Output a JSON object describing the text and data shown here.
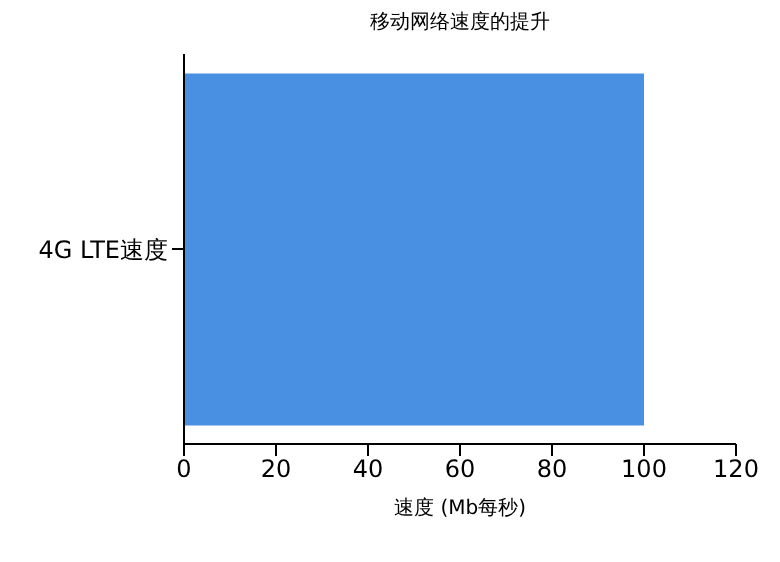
{
  "chart_data": {
    "type": "bar",
    "orientation": "horizontal",
    "title": "移动网络速度的提升",
    "xlabel": "速度 (Mb每秒)",
    "categories": [
      "4G LTE速度"
    ],
    "values": [
      100
    ],
    "color": "#4a90e2",
    "xlim": [
      0,
      120
    ],
    "xticks": [
      0,
      20,
      40,
      60,
      80,
      100,
      120
    ],
    "grid": false,
    "legend": false
  }
}
